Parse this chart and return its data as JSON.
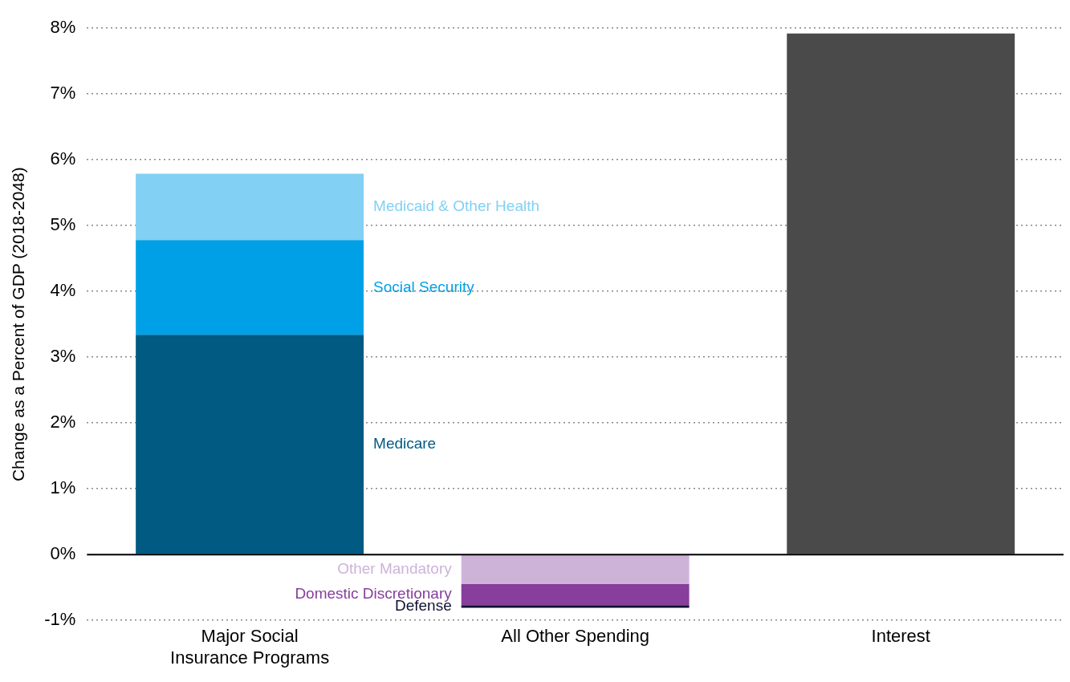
{
  "chart_data": {
    "type": "bar",
    "stacked": true,
    "ylabel": "Change as a Percent of GDP (2018-2048)",
    "categories": [
      "Major Social Insurance Programs",
      "All Other Spending",
      "Interest"
    ],
    "series": [
      {
        "name": "Medicare",
        "color": "#005a82",
        "values": [
          3.34,
          null,
          null
        ]
      },
      {
        "name": "Social Security",
        "color": "#00a0e6",
        "values": [
          1.44,
          null,
          null
        ]
      },
      {
        "name": "Medicaid & Other Health",
        "color": "#82d0f4",
        "values": [
          1.01,
          null,
          null
        ]
      },
      {
        "name": "Other Mandatory",
        "color": "#ceb3d9",
        "values": [
          null,
          -0.45,
          null
        ]
      },
      {
        "name": "Domestic Discretionary",
        "color": "#873e9c",
        "values": [
          null,
          -0.32,
          null
        ]
      },
      {
        "name": "Defense",
        "color": "#0f1030",
        "values": [
          null,
          -0.04,
          null
        ]
      },
      {
        "color": "#4a4a4a",
        "values": [
          null,
          null,
          7.92
        ]
      }
    ],
    "ylim": [
      -1,
      8
    ],
    "yticks": [
      {
        "value": -1,
        "label": "-1%"
      },
      {
        "value": 0,
        "label": "0%"
      },
      {
        "value": 1,
        "label": "1%"
      },
      {
        "value": 2,
        "label": "2%"
      },
      {
        "value": 3,
        "label": "3%"
      },
      {
        "value": 4,
        "label": "4%"
      },
      {
        "value": 5,
        "label": "5%"
      },
      {
        "value": 6,
        "label": "6%"
      },
      {
        "value": 7,
        "label": "7%"
      },
      {
        "value": 8,
        "label": "8%"
      }
    ],
    "grid": "y",
    "legend": false
  }
}
